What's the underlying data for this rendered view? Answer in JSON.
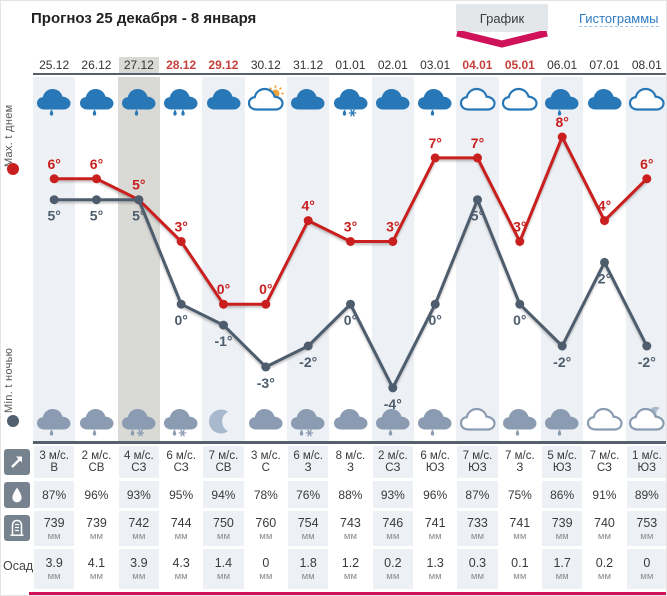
{
  "header": {
    "title": "Прогноз 25 декабря - 8 января",
    "tabs": [
      {
        "label": "График",
        "active": true
      },
      {
        "label": "Гистограммы",
        "active": false
      }
    ]
  },
  "legend": {
    "max_label": "Max. t днем",
    "min_label": "Min. t ночью",
    "precip_label": "Осад"
  },
  "colors": {
    "accent": "#cf1259",
    "max_line": "#c9201f",
    "min_line": "#4e5d6d",
    "stripe": "#edf0f4",
    "selected_stripe": "#d9dad6",
    "red_date": "#c5403c",
    "day_icon": "#2878b8",
    "night_icon": "#8b9cb2",
    "moon": "#a9b9cd",
    "sun": "#f2a33c",
    "row_icon_bg": "#76828e",
    "separator": "#57616d",
    "link": "#2f7cc0"
  },
  "chart_data": {
    "type": "line",
    "categories": [
      "25.12",
      "26.12",
      "27.12",
      "28.12",
      "29.12",
      "30.12",
      "31.12",
      "01.01",
      "02.01",
      "03.01",
      "04.01",
      "05.01",
      "06.01",
      "07.01",
      "08.01"
    ],
    "selected_index": 2,
    "red_date_indices": [
      3,
      4,
      10,
      11
    ],
    "series": [
      {
        "name": "Max. t днем",
        "color": "#c9201f",
        "values": [
          6,
          6,
          5,
          3,
          0,
          0,
          4,
          3,
          3,
          7,
          7,
          3,
          8,
          4,
          6
        ]
      },
      {
        "name": "Min. t ночью",
        "color": "#4e5d6d",
        "values": [
          5,
          5,
          5,
          0,
          -1,
          -3,
          -2,
          0,
          -4,
          0,
          5,
          0,
          -2,
          2,
          -2
        ]
      }
    ],
    "unit": "°",
    "ylim": [
      -4,
      8
    ],
    "grid": false,
    "legend_position": "left"
  },
  "day_icons": [
    "rain",
    "rain",
    "rain",
    "rain2",
    "cloud",
    "sun-cloud",
    "cloud",
    "rain-snow",
    "cloud",
    "rain",
    "cloud-o",
    "cloud-o",
    "rain",
    "cloud",
    "cloud-o"
  ],
  "night_icons": [
    "rain",
    "rain",
    "rain-snow",
    "rain-snow",
    "moon",
    "cloud",
    "rain-snow",
    "cloud",
    "rain",
    "rain",
    "cloud-o",
    "rain",
    "rain",
    "cloud-o",
    "cloud-o-moon"
  ],
  "table": {
    "wind": {
      "icon": "wind-arrow-icon",
      "unit": "м/с.",
      "speeds": [
        3,
        2,
        4,
        6,
        7,
        3,
        6,
        8,
        2,
        6,
        7,
        7,
        5,
        7,
        1
      ],
      "directions": [
        "В",
        "СВ",
        "СЗ",
        "СЗ",
        "СВ",
        "С",
        "З",
        "З",
        "СЗ",
        "ЮЗ",
        "ЮЗ",
        "З",
        "ЮЗ",
        "СЗ",
        "ЮЗ"
      ]
    },
    "humidity": {
      "icon": "drop-icon",
      "values": [
        "87%",
        "96%",
        "93%",
        "95%",
        "94%",
        "78%",
        "76%",
        "88%",
        "93%",
        "96%",
        "87%",
        "75%",
        "86%",
        "91%",
        "89%"
      ]
    },
    "pressure": {
      "icon": "barometer-icon",
      "unit": "мм",
      "values": [
        739,
        739,
        742,
        744,
        750,
        760,
        754,
        743,
        746,
        741,
        733,
        741,
        739,
        740,
        753
      ]
    },
    "precipitation": {
      "label": "Осад",
      "unit": "мм",
      "values": [
        "3.9",
        "4.1",
        "3.9",
        "4.3",
        "1.4",
        "0",
        "1.8",
        "1.2",
        "0.2",
        "1.3",
        "0.3",
        "0.1",
        "1.7",
        "0.2",
        "0"
      ]
    }
  }
}
